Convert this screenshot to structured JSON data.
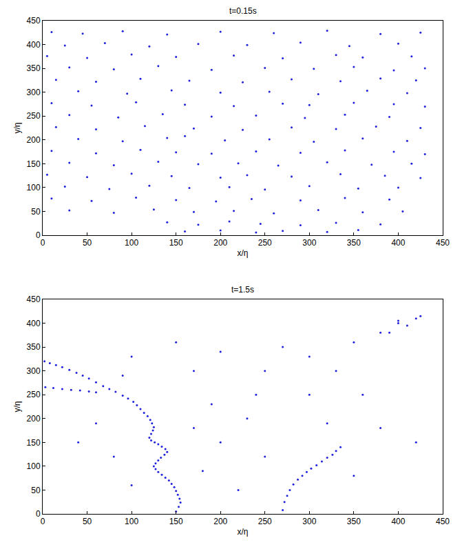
{
  "chart_data": [
    {
      "type": "scatter",
      "title": "t=0.15s",
      "xlabel": "x/η",
      "ylabel": "y/η",
      "color": "#1f1fe0",
      "marker": "dot",
      "xlim": [
        0,
        450
      ],
      "ylim": [
        0,
        450
      ],
      "xticks": [
        0,
        50,
        100,
        150,
        200,
        250,
        300,
        350,
        400,
        450
      ],
      "yticks": [
        0,
        50,
        100,
        150,
        200,
        250,
        300,
        350,
        400,
        450
      ],
      "x": [
        10,
        45,
        90,
        140,
        200,
        260,
        320,
        380,
        425,
        25,
        70,
        120,
        175,
        230,
        290,
        345,
        400,
        5,
        50,
        100,
        150,
        215,
        270,
        330,
        360,
        415,
        30,
        80,
        130,
        190,
        250,
        305,
        350,
        395,
        430,
        15,
        60,
        110,
        165,
        225,
        280,
        335,
        380,
        420,
        40,
        95,
        145,
        200,
        255,
        310,
        365,
        410,
        10,
        55,
        105,
        160,
        215,
        270,
        300,
        350,
        395,
        430,
        30,
        85,
        135,
        190,
        240,
        295,
        340,
        390,
        15,
        60,
        115,
        170,
        225,
        280,
        330,
        375,
        425,
        40,
        90,
        140,
        160,
        205,
        255,
        305,
        360,
        410,
        10,
        60,
        110,
        150,
        190,
        240,
        290,
        340,
        395,
        430,
        30,
        80,
        130,
        175,
        220,
        265,
        320,
        370,
        415,
        5,
        50,
        100,
        145,
        200,
        230,
        280,
        335,
        385,
        425,
        25,
        75,
        120,
        165,
        210,
        250,
        300,
        355,
        400,
        10,
        55,
        105,
        150,
        195,
        235,
        290,
        340,
        390,
        30,
        80,
        125,
        170,
        215,
        260,
        310,
        360,
        405,
        140,
        175,
        210,
        245,
        290,
        330,
        380,
        160,
        200,
        240,
        270,
        320,
        355
      ],
      "values": [
        426,
        423,
        428,
        421,
        427,
        424,
        429,
        422,
        425,
        398,
        403,
        396,
        401,
        399,
        404,
        397,
        402,
        376,
        372,
        379,
        374,
        377,
        371,
        378,
        373,
        375,
        352,
        348,
        355,
        347,
        351,
        349,
        353,
        346,
        350,
        326,
        322,
        328,
        324,
        321,
        327,
        323,
        329,
        325,
        302,
        297,
        304,
        299,
        301,
        296,
        303,
        298,
        277,
        272,
        279,
        274,
        271,
        276,
        273,
        278,
        275,
        270,
        252,
        247,
        254,
        249,
        251,
        246,
        253,
        248,
        227,
        222,
        229,
        224,
        221,
        226,
        223,
        228,
        225,
        202,
        197,
        204,
        208,
        199,
        201,
        196,
        203,
        198,
        177,
        172,
        179,
        174,
        171,
        176,
        173,
        178,
        175,
        170,
        152,
        147,
        154,
        149,
        151,
        146,
        153,
        148,
        150,
        127,
        122,
        129,
        124,
        121,
        126,
        123,
        128,
        125,
        120,
        102,
        97,
        104,
        99,
        101,
        96,
        103,
        98,
        100,
        77,
        72,
        79,
        74,
        71,
        76,
        73,
        78,
        75,
        52,
        47,
        54,
        49,
        51,
        46,
        53,
        48,
        50,
        27,
        22,
        29,
        24,
        21,
        26,
        23,
        8,
        10,
        6,
        9,
        7,
        11
      ]
    },
    {
      "type": "scatter",
      "title": "t=1.5s",
      "xlabel": "x/η",
      "ylabel": "y/η",
      "color": "#1f1fe0",
      "marker": "dot",
      "xlim": [
        0,
        450
      ],
      "ylim": [
        0,
        450
      ],
      "xticks": [
        0,
        50,
        100,
        150,
        200,
        250,
        300,
        350,
        400,
        450
      ],
      "yticks": [
        0,
        50,
        100,
        150,
        200,
        250,
        300,
        350,
        400,
        450
      ],
      "x": [
        2,
        8,
        15,
        22,
        30,
        38,
        45,
        52,
        60,
        68,
        75,
        82,
        90,
        96,
        102,
        106,
        110,
        114,
        118,
        121,
        123,
        125,
        124,
        122,
        120,
        122,
        126,
        130,
        134,
        138,
        140,
        137,
        133,
        130,
        127,
        125,
        127,
        130,
        134,
        138,
        142,
        145,
        148,
        150,
        152,
        154,
        155,
        153,
        150,
        3,
        12,
        22,
        32,
        42,
        52,
        60,
        335,
        330,
        326,
        320,
        314,
        308,
        302,
        297,
        292,
        287,
        282,
        278,
        275,
        272,
        270,
        200,
        250,
        300,
        350,
        380,
        400,
        420,
        360,
        230,
        200,
        250,
        180,
        60,
        40,
        80,
        100,
        220,
        350,
        420,
        300,
        270,
        170,
        150,
        100,
        330,
        240,
        380,
        190,
        90,
        320,
        170,
        400,
        410,
        390,
        425
      ],
      "values": [
        320,
        316,
        312,
        308,
        302,
        296,
        290,
        284,
        276,
        268,
        262,
        256,
        248,
        242,
        235,
        228,
        220,
        212,
        205,
        197,
        190,
        182,
        175,
        168,
        160,
        154,
        150,
        146,
        141,
        136,
        130,
        124,
        118,
        112,
        106,
        100,
        94,
        88,
        82,
        76,
        70,
        63,
        56,
        48,
        40,
        32,
        24,
        15,
        5,
        266,
        264,
        262,
        260,
        259,
        257,
        255,
        140,
        132,
        124,
        118,
        110,
        102,
        95,
        88,
        80,
        72,
        62,
        50,
        38,
        25,
        8,
        340,
        300,
        330,
        360,
        380,
        400,
        410,
        250,
        200,
        150,
        120,
        90,
        190,
        150,
        120,
        60,
        50,
        80,
        150,
        250,
        350,
        300,
        360,
        330,
        300,
        250,
        180,
        230,
        290,
        190,
        180,
        405,
        395,
        380,
        415
      ]
    }
  ]
}
